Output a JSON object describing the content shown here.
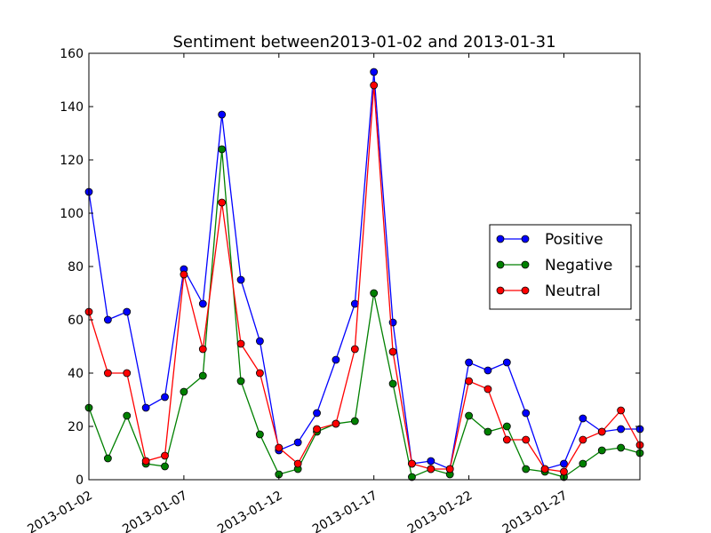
{
  "chart_data": {
    "type": "line",
    "title": "Sentiment between2013-01-02 and 2013-01-31",
    "xlabel": "",
    "ylabel": "",
    "x": [
      "2013-01-02",
      "2013-01-03",
      "2013-01-04",
      "2013-01-05",
      "2013-01-06",
      "2013-01-07",
      "2013-01-08",
      "2013-01-09",
      "2013-01-10",
      "2013-01-11",
      "2013-01-12",
      "2013-01-13",
      "2013-01-14",
      "2013-01-15",
      "2013-01-16",
      "2013-01-17",
      "2013-01-18",
      "2013-01-19",
      "2013-01-20",
      "2013-01-21",
      "2013-01-22",
      "2013-01-23",
      "2013-01-24",
      "2013-01-25",
      "2013-01-26",
      "2013-01-27",
      "2013-01-28",
      "2013-01-29",
      "2013-01-30",
      "2013-01-31"
    ],
    "xlim": [
      "2013-01-02",
      "2013-01-31"
    ],
    "xticks": [
      "2013-01-02",
      "2013-01-07",
      "2013-01-12",
      "2013-01-17",
      "2013-01-22",
      "2013-01-27"
    ],
    "ylim": [
      0,
      160
    ],
    "yticks": [
      0,
      20,
      40,
      60,
      80,
      100,
      120,
      140,
      160
    ],
    "grid": false,
    "legend_position": "center-right",
    "series": [
      {
        "name": "Positive",
        "color": "#0000ff",
        "values": [
          108,
          60,
          63,
          27,
          31,
          79,
          66,
          137,
          75,
          52,
          11,
          14,
          25,
          45,
          66,
          153,
          59,
          6,
          7,
          4,
          44,
          41,
          44,
          25,
          4,
          6,
          23,
          18,
          19,
          19
        ]
      },
      {
        "name": "Negative",
        "color": "#008000",
        "values": [
          27,
          8,
          24,
          6,
          5,
          33,
          39,
          124,
          37,
          17,
          2,
          4,
          18,
          21,
          22,
          70,
          36,
          1,
          4,
          2,
          24,
          18,
          20,
          4,
          3,
          1,
          6,
          11,
          12,
          10
        ]
      },
      {
        "name": "Neutral",
        "color": "#ff0000",
        "values": [
          63,
          40,
          40,
          7,
          9,
          77,
          49,
          104,
          51,
          40,
          12,
          6,
          19,
          21,
          49,
          148,
          48,
          6,
          4,
          4,
          37,
          34,
          15,
          15,
          4,
          3,
          15,
          18,
          26,
          13
        ]
      }
    ]
  }
}
